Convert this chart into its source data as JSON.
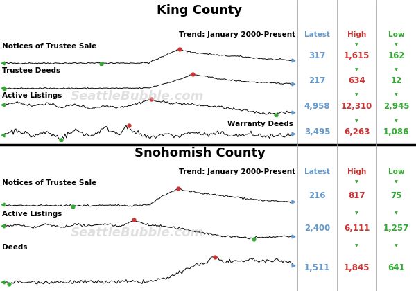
{
  "king_title": "King County",
  "snohomish_title": "Snohomish County",
  "trend_label": "Trend: January 2000-Present",
  "col_latest": "Latest",
  "col_high": "High",
  "col_low": "Low",
  "latest_color": "#6699cc",
  "high_color": "#cc3333",
  "low_color": "#33aa33",
  "bg_color": "#ffffff",
  "watermark": "SeattleBubble.com",
  "king_rows": [
    {
      "label": "Notices of Trustee Sale",
      "latest": "317",
      "high": "1,615",
      "low": "162"
    },
    {
      "label": "Trustee Deeds",
      "latest": "217",
      "high": "634",
      "low": "12"
    },
    {
      "label": "Active Listings",
      "latest": "4,958",
      "high": "12,310",
      "low": "2,945"
    },
    {
      "label": "Warranty Deeds",
      "latest": "3,495",
      "high": "6,263",
      "low": "1,086",
      "inline_label": true
    }
  ],
  "snohomish_rows": [
    {
      "label": "Notices of Trustee Sale",
      "latest": "216",
      "high": "817",
      "low": "75"
    },
    {
      "label": "Active Listings",
      "latest": "2,400",
      "high": "6,111",
      "low": "1,257"
    },
    {
      "label": "Deeds",
      "latest": "1,511",
      "high": "1,845",
      "low": "641"
    }
  ],
  "line_color": "#111111",
  "title_fontsize": 13,
  "label_fontsize": 7.5,
  "stats_fontsize": 8.5,
  "header_fontsize": 7.5,
  "divider_lw": 2.5
}
